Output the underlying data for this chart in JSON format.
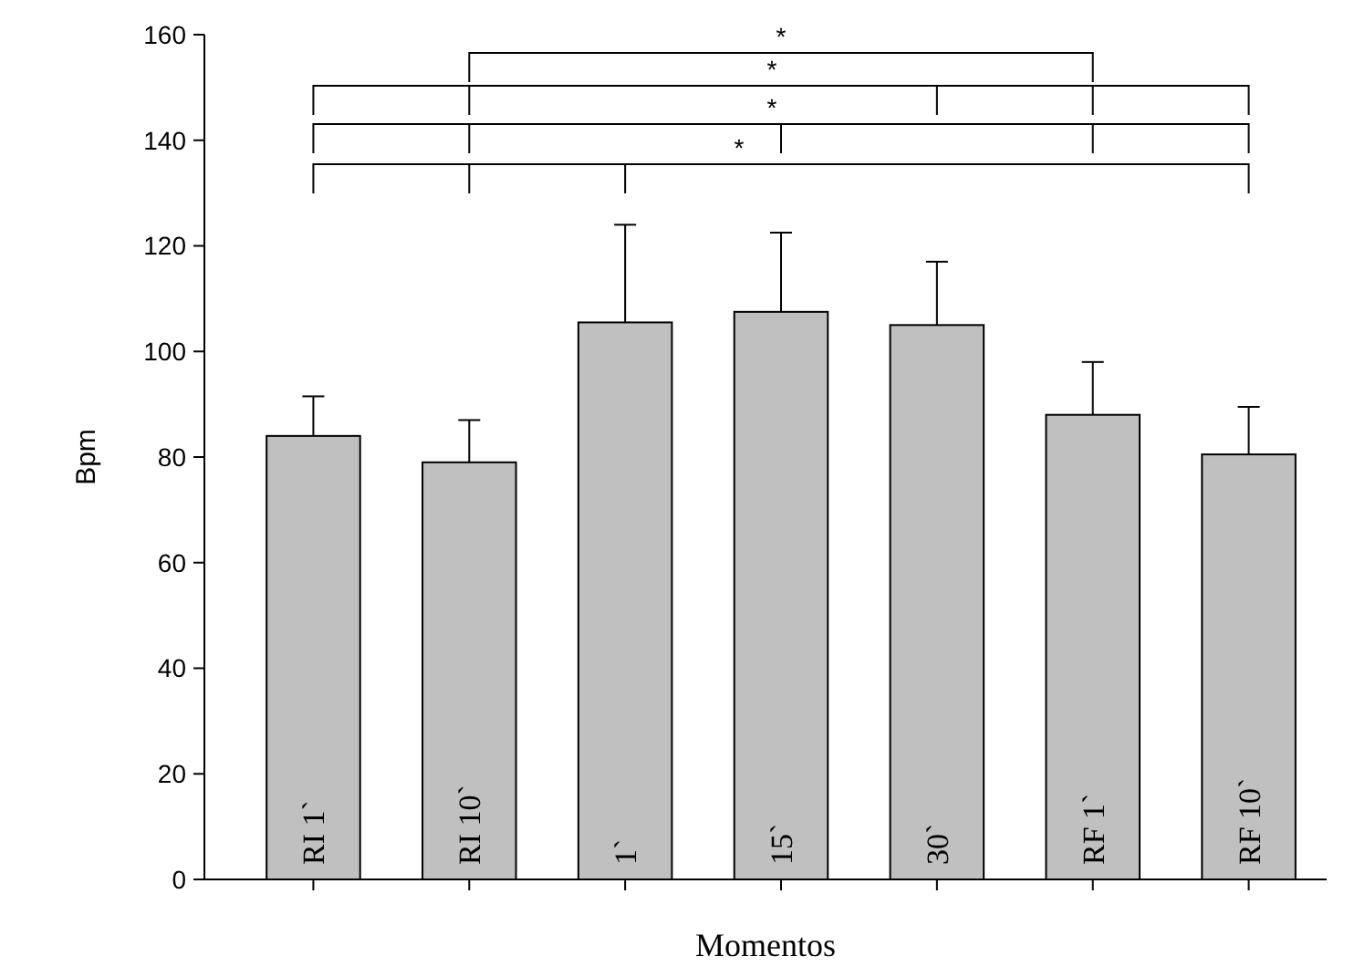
{
  "chart_data": {
    "type": "bar",
    "xlabel": "Momentos",
    "ylabel": "Bpm",
    "categories": [
      "RI 1`",
      "RI 10`",
      "1`",
      "15`",
      "30`",
      "RF 1`",
      "RF 10`"
    ],
    "values": [
      84,
      79,
      105.5,
      107.5,
      105,
      88,
      80.5
    ],
    "errors": [
      [
        84,
        91.5
      ],
      [
        79,
        87
      ],
      [
        105.5,
        124
      ],
      [
        107.5,
        122.5
      ],
      [
        105,
        117
      ],
      [
        88,
        98
      ],
      [
        80.5,
        89.5
      ]
    ],
    "color": "#c0c0c0",
    "ylim": [
      0,
      160
    ],
    "yticks": [
      0,
      20,
      40,
      60,
      80,
      100,
      120,
      140,
      160
    ],
    "grid": false,
    "annotations": [
      "*",
      "*",
      "*",
      "*"
    ]
  }
}
